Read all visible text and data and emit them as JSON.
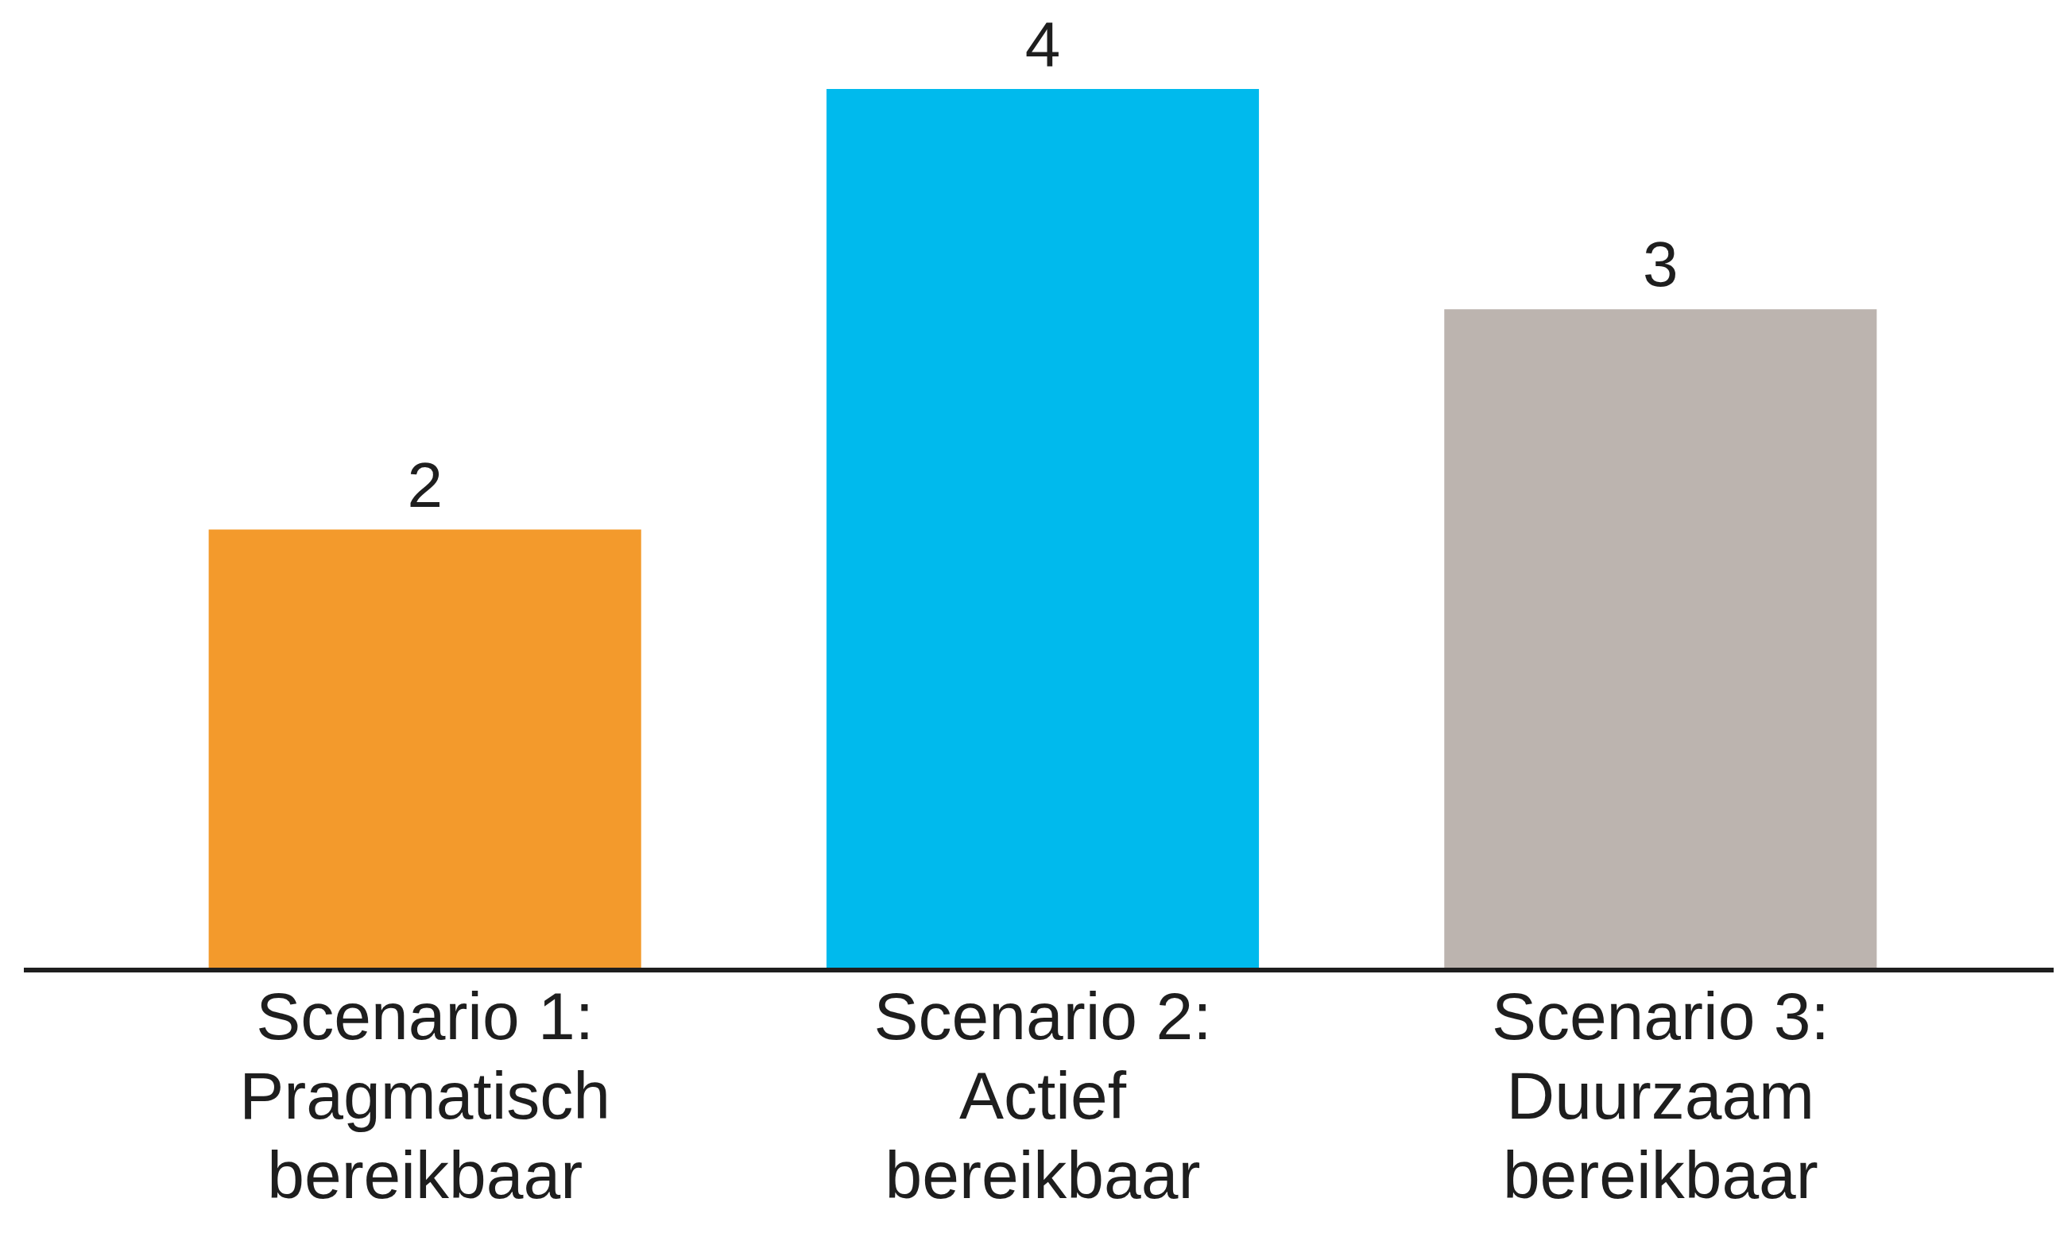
{
  "chart_data": {
    "type": "bar",
    "categories": [
      "Scenario 1: Pragmatisch bereikbaar",
      "Scenario 2: Actief bereikbaar",
      "Scenario 3: Duurzaam bereikbaar"
    ],
    "values": [
      2,
      4,
      3
    ],
    "colors": [
      "#f39a2c",
      "#00baed",
      "#bcb4af"
    ],
    "ylim": [
      0,
      4
    ],
    "data_labels": true,
    "tick_labels": "x"
  }
}
